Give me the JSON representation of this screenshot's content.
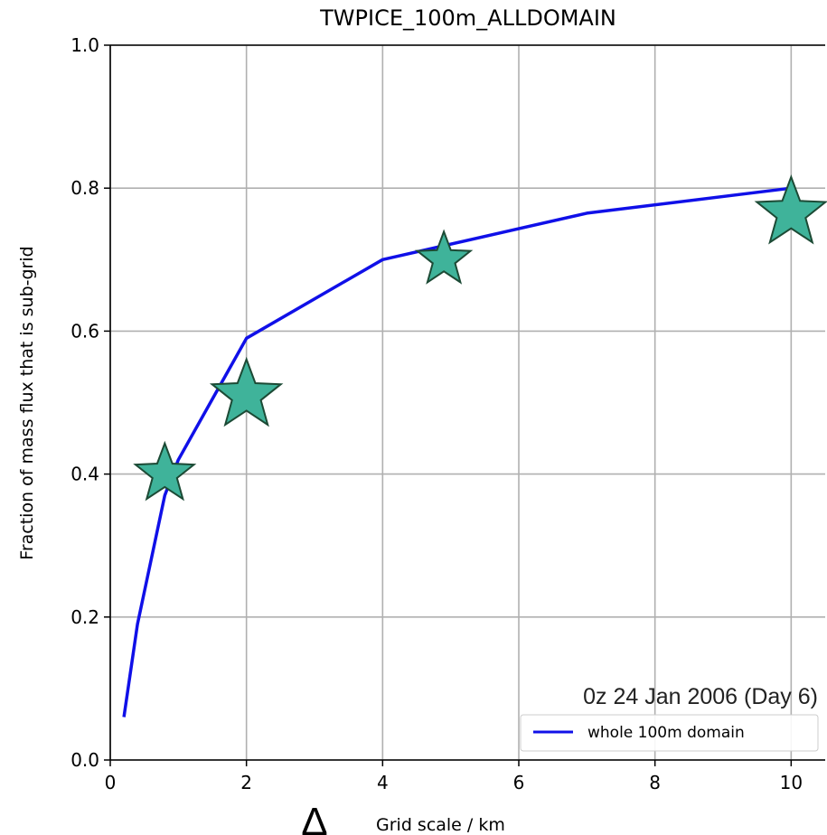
{
  "chart_data": {
    "type": "line",
    "title": "TWPICE_100m_ALLDOMAIN",
    "xlabel": "Grid scale / km",
    "xlabel_symbol": "Δ",
    "ylabel": "Fraction of mass flux that is sub-grid",
    "xlim": [
      0,
      10.5
    ],
    "ylim": [
      0,
      1.0
    ],
    "xticks": [
      0,
      2,
      4,
      6,
      8,
      10
    ],
    "yticks": [
      0.0,
      0.2,
      0.4,
      0.6,
      0.8,
      1.0
    ],
    "xtick_labels": [
      "0",
      "2",
      "4",
      "6",
      "8",
      "10"
    ],
    "ytick_labels": [
      "0.0",
      "0.2",
      "0.4",
      "0.6",
      "0.8",
      "1.0"
    ],
    "grid": true,
    "legend_placement": "lower-right",
    "annotation": "0z 24 Jan 2006 (Day 6)",
    "series": [
      {
        "name": "whole 100m domain",
        "kind": "line",
        "color": "#1010e8",
        "x": [
          0.2,
          0.4,
          0.8,
          1.0,
          2.0,
          4.0,
          7.0,
          10.0
        ],
        "y": [
          0.06,
          0.19,
          0.37,
          0.42,
          0.59,
          0.7,
          0.765,
          0.8
        ]
      },
      {
        "kind": "scatter",
        "marker": "star",
        "color": "#3fb39a",
        "edge_color": "#1c4a35",
        "x": [
          0.8,
          2.0,
          4.9,
          10.0
        ],
        "y": [
          0.4,
          0.51,
          0.7,
          0.765
        ]
      }
    ]
  }
}
